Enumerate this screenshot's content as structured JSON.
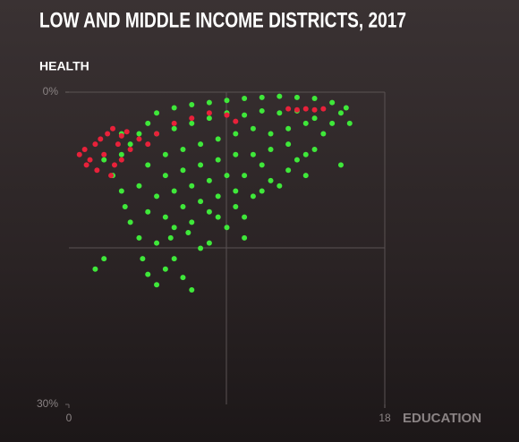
{
  "chart_data": {
    "type": "scatter",
    "title": "LOW AND MIDDLE INCOME DISTRICTS, 2017",
    "y_label": "HEALTH",
    "x_label": "EDUCATION",
    "xlim": [
      0,
      18
    ],
    "xticks": [
      0,
      18
    ],
    "ylim": [
      0,
      30
    ],
    "y_inverted": true,
    "yticks": [
      {
        "value": 0,
        "label": "0%"
      },
      {
        "value": 30,
        "label": "30%"
      }
    ],
    "series": [
      {
        "color": "#3fe83a",
        "x": [
          2.0,
          2.5,
          3.0,
          3.2,
          3.5,
          4.0,
          4.2,
          4.5,
          5.0,
          5.5,
          6.0,
          6.5,
          7.0,
          5.8,
          6.8,
          7.5,
          8.0,
          8.5,
          9.0,
          9.5,
          10.0,
          10.5,
          11.0,
          11.5,
          12.0,
          12.5,
          13.0,
          13.5,
          14.0,
          14.5,
          15.0,
          15.5,
          15.8,
          15.0,
          14.0,
          13.0,
          12.0,
          11.0,
          10.0,
          9.0,
          8.0,
          7.0,
          6.0,
          5.0,
          4.5,
          4.0,
          3.5,
          3.0,
          5.0,
          6.0,
          7.0,
          8.0,
          9.0,
          10.0,
          11.0,
          12.0,
          13.0,
          14.0,
          5.5,
          6.5,
          7.5,
          8.5,
          9.5,
          10.5,
          11.5,
          12.5,
          13.5,
          4.5,
          5.5,
          6.5,
          7.5,
          8.5,
          9.5,
          10.5,
          11.5,
          12.5,
          4.0,
          5.0,
          6.0,
          7.0,
          8.0,
          9.0,
          10.0,
          11.0,
          4.5,
          5.5,
          6.5,
          7.5,
          8.5,
          9.5,
          5.0,
          6.0,
          7.0,
          8.0,
          3.0,
          1.5,
          2.0,
          15.5,
          16.0,
          13.5,
          10.0
        ],
        "values": [
          6.5,
          8.0,
          9.5,
          11.0,
          12.5,
          14.0,
          16.0,
          17.5,
          18.5,
          17.0,
          16.0,
          17.8,
          19.0,
          14.0,
          13.5,
          15.0,
          14.5,
          12.0,
          13.0,
          11.0,
          12.0,
          10.0,
          9.5,
          8.5,
          9.0,
          7.5,
          6.5,
          6.0,
          5.5,
          4.0,
          3.0,
          2.0,
          1.5,
          1.0,
          0.6,
          0.5,
          0.4,
          0.5,
          0.6,
          0.8,
          1.0,
          1.2,
          1.5,
          2.0,
          3.0,
          4.0,
          5.0,
          6.0,
          4.0,
          3.5,
          3.0,
          2.5,
          2.0,
          2.2,
          1.8,
          2.0,
          1.8,
          2.5,
          6.0,
          5.5,
          5.0,
          4.5,
          4.0,
          3.5,
          4.0,
          3.5,
          3.0,
          7.0,
          8.0,
          7.5,
          7.0,
          6.5,
          6.0,
          6.0,
          5.5,
          5.0,
          9.0,
          10.0,
          9.5,
          9.0,
          8.5,
          8.0,
          8.0,
          7.0,
          11.5,
          12.0,
          11.0,
          10.5,
          10.0,
          9.5,
          14.5,
          13.0,
          12.5,
          11.5,
          4.0,
          17.0,
          16.0,
          7.0,
          3.0,
          8.0,
          14.0
        ]
      },
      {
        "color": "#e8213a",
        "x": [
          0.6,
          0.9,
          1.2,
          1.5,
          1.8,
          2.0,
          2.2,
          2.5,
          2.8,
          3.0,
          3.3,
          1.0,
          1.6,
          2.4,
          2.6,
          3.0,
          3.5,
          4.0,
          4.5,
          5.0,
          6.0,
          7.0,
          8.0,
          9.0,
          9.5,
          12.5,
          13.0,
          13.5,
          14.0,
          14.5
        ],
        "values": [
          6.0,
          5.5,
          6.5,
          5.0,
          4.5,
          6.0,
          4.0,
          3.5,
          5.0,
          4.2,
          3.8,
          7.0,
          7.5,
          8.0,
          7.0,
          6.5,
          5.5,
          4.5,
          5.0,
          4.0,
          3.0,
          2.5,
          2.0,
          2.2,
          2.8,
          1.6,
          1.7,
          1.6,
          1.7,
          1.6
        ]
      }
    ]
  }
}
